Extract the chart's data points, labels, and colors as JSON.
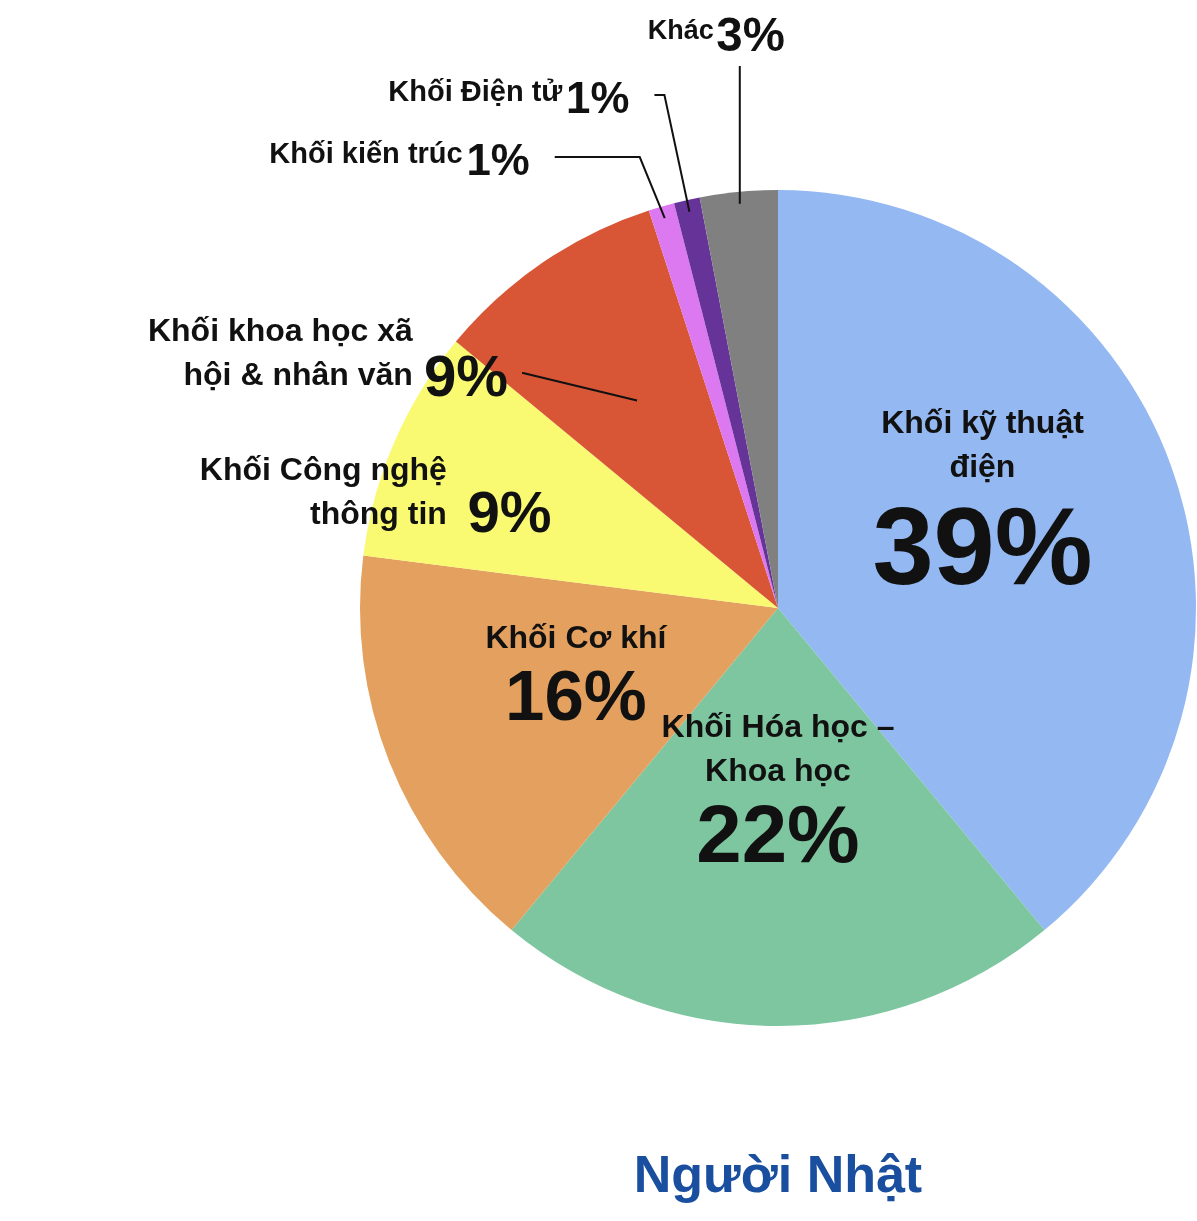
{
  "chart_data": {
    "type": "pie",
    "title": "Người Nhật",
    "categories": [
      "Khối kỹ thuật điện",
      "Khối Hóa học – Khoa học",
      "Khối Cơ khí",
      "Khối Công nghệ thông tin",
      "Khối khoa học xã hội & nhân văn",
      "Khối kiến trúc",
      "Khối Điện tử",
      "Khác"
    ],
    "values": [
      39,
      22,
      16,
      9,
      9,
      1,
      1,
      3
    ],
    "value_labels": [
      "39%",
      "22%",
      "16%",
      "9%",
      "9%",
      "1%",
      "1%",
      "3%"
    ],
    "colors": [
      "#94b8f2",
      "#7dc6a0",
      "#e4a05e",
      "#fafa72",
      "#d85535",
      "#dc78f0",
      "#663399",
      "#808080"
    ]
  }
}
